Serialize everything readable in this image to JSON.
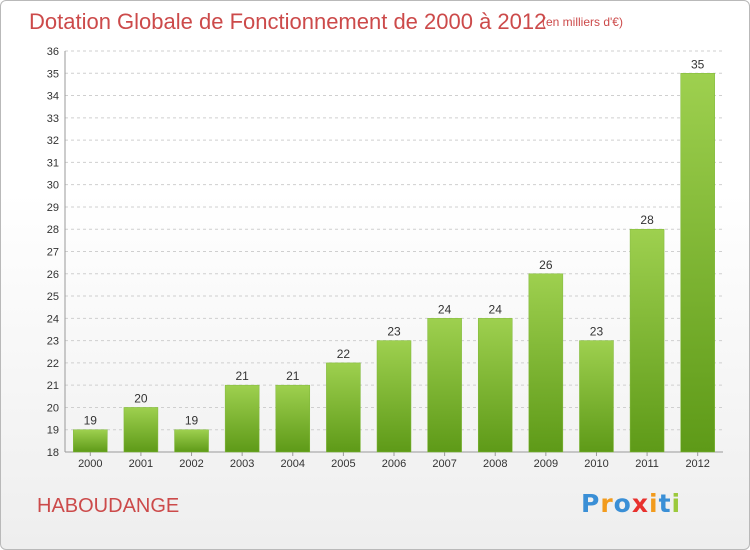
{
  "header": {
    "title": "Dotation Globale de Fonctionnement de 2000 à 2012",
    "subtitle": "(en milliers d'€)"
  },
  "footer": {
    "commune": "HABOUDANGE",
    "logo_letters": [
      "P",
      "r",
      "o",
      "x",
      "i",
      "t",
      "i"
    ],
    "logo_colors": [
      "#3a8fd6",
      "#f29b1d",
      "#3a8fd6",
      "#e8312e",
      "#f29b1d",
      "#3a8fd6",
      "#9bc93c"
    ]
  },
  "chart_data": {
    "type": "bar",
    "title": "Dotation Globale de Fonctionnement de 2000 à 2012",
    "subtitle": "(en milliers d'€)",
    "xlabel": "",
    "ylabel": "",
    "categories": [
      "2000",
      "2001",
      "2002",
      "2003",
      "2004",
      "2005",
      "2006",
      "2007",
      "2008",
      "2009",
      "2010",
      "2011",
      "2012"
    ],
    "values": [
      19,
      20,
      19,
      21,
      21,
      22,
      23,
      24,
      24,
      26,
      23,
      28,
      35
    ],
    "ylim": [
      18,
      36
    ],
    "yticks": [
      18,
      19,
      20,
      21,
      22,
      23,
      24,
      25,
      26,
      27,
      28,
      29,
      30,
      31,
      32,
      33,
      34,
      35,
      36
    ],
    "grid": "horizontal dashed",
    "colors": {
      "bar_top": "#9ed04f",
      "bar_bottom": "#5e9a18",
      "title": "#cc4a4a"
    }
  }
}
